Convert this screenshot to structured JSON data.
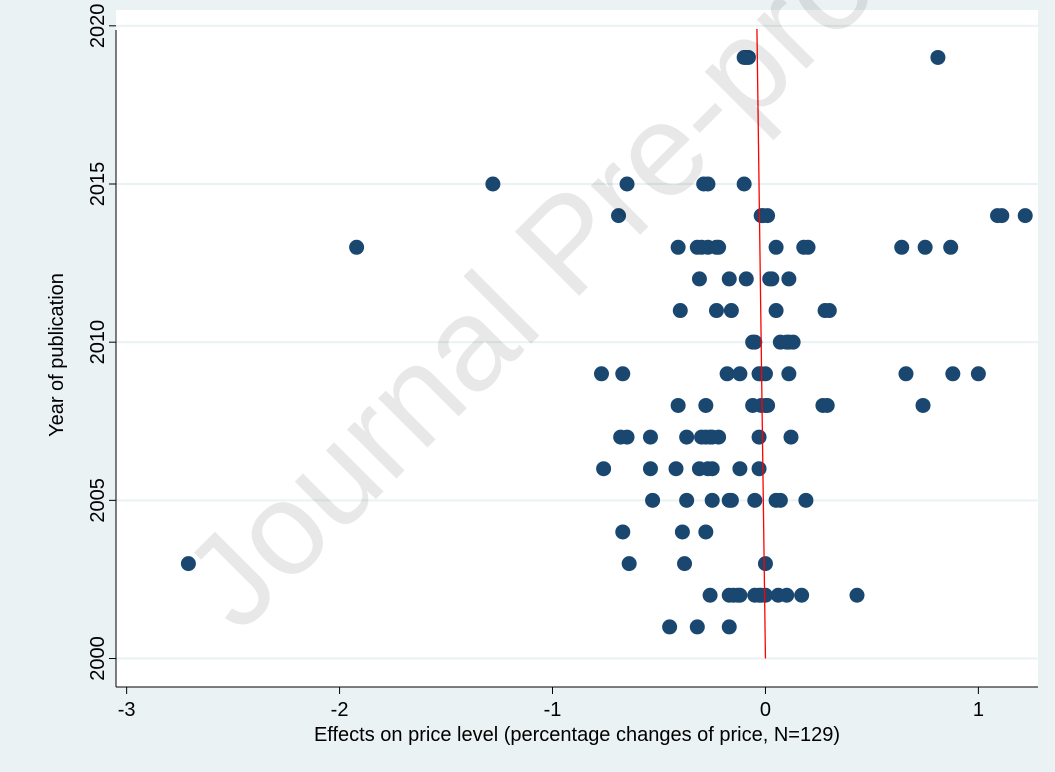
{
  "watermark": "Journal Pre-proof",
  "chart_data": {
    "type": "scatter",
    "title": "",
    "xlabel": "Effects on price level (percentage changes of price, N=129)",
    "ylabel": "Year of publication",
    "xlim": [
      -3.05,
      1.28
    ],
    "ylim": [
      1999.1,
      2020.5
    ],
    "xticks": [
      -3,
      -2,
      -1,
      0,
      1
    ],
    "yticks": [
      2000,
      2005,
      2010,
      2015,
      2020
    ],
    "grid": "horizontal",
    "colors": {
      "marker": "#1a476f",
      "line": "#ff0000",
      "plot_bg": "#ffffff",
      "outer_bg": "#eaf2f3",
      "grid": "#eaf2f3"
    },
    "trend_line": {
      "x": [
        -0.04,
        0.0
      ],
      "y": [
        2019.9,
        2000.0
      ]
    },
    "points": [
      {
        "x": -0.1,
        "y": 2019
      },
      {
        "x": -0.09,
        "y": 2019
      },
      {
        "x": -0.08,
        "y": 2019
      },
      {
        "x": 0.81,
        "y": 2019
      },
      {
        "x": -1.28,
        "y": 2015
      },
      {
        "x": -0.65,
        "y": 2015
      },
      {
        "x": -0.29,
        "y": 2015
      },
      {
        "x": -0.27,
        "y": 2015
      },
      {
        "x": -0.1,
        "y": 2015
      },
      {
        "x": -0.69,
        "y": 2014
      },
      {
        "x": -0.02,
        "y": 2014
      },
      {
        "x": -0.01,
        "y": 2014
      },
      {
        "x": 0.01,
        "y": 2014
      },
      {
        "x": 1.09,
        "y": 2014
      },
      {
        "x": 1.11,
        "y": 2014
      },
      {
        "x": 1.22,
        "y": 2014
      },
      {
        "x": -1.92,
        "y": 2013
      },
      {
        "x": -0.41,
        "y": 2013
      },
      {
        "x": -0.32,
        "y": 2013
      },
      {
        "x": -0.3,
        "y": 2013
      },
      {
        "x": -0.27,
        "y": 2013
      },
      {
        "x": -0.23,
        "y": 2013
      },
      {
        "x": -0.22,
        "y": 2013
      },
      {
        "x": 0.05,
        "y": 2013
      },
      {
        "x": 0.18,
        "y": 2013
      },
      {
        "x": 0.2,
        "y": 2013
      },
      {
        "x": 0.64,
        "y": 2013
      },
      {
        "x": 0.75,
        "y": 2013
      },
      {
        "x": 0.87,
        "y": 2013
      },
      {
        "x": -0.31,
        "y": 2012
      },
      {
        "x": -0.17,
        "y": 2012
      },
      {
        "x": -0.09,
        "y": 2012
      },
      {
        "x": 0.02,
        "y": 2012
      },
      {
        "x": 0.03,
        "y": 2012
      },
      {
        "x": 0.11,
        "y": 2012
      },
      {
        "x": -0.4,
        "y": 2011
      },
      {
        "x": -0.23,
        "y": 2011
      },
      {
        "x": -0.16,
        "y": 2011
      },
      {
        "x": 0.05,
        "y": 2011
      },
      {
        "x": 0.28,
        "y": 2011
      },
      {
        "x": 0.3,
        "y": 2011
      },
      {
        "x": -0.06,
        "y": 2010
      },
      {
        "x": -0.05,
        "y": 2010
      },
      {
        "x": 0.07,
        "y": 2010
      },
      {
        "x": 0.1,
        "y": 2010
      },
      {
        "x": 0.11,
        "y": 2010
      },
      {
        "x": 0.13,
        "y": 2010
      },
      {
        "x": -0.77,
        "y": 2009
      },
      {
        "x": -0.67,
        "y": 2009
      },
      {
        "x": -0.18,
        "y": 2009
      },
      {
        "x": -0.12,
        "y": 2009
      },
      {
        "x": -0.03,
        "y": 2009
      },
      {
        "x": -0.02,
        "y": 2009
      },
      {
        "x": 0.0,
        "y": 2009
      },
      {
        "x": 0.11,
        "y": 2009
      },
      {
        "x": 0.66,
        "y": 2009
      },
      {
        "x": 0.88,
        "y": 2009
      },
      {
        "x": 1.0,
        "y": 2009
      },
      {
        "x": -0.41,
        "y": 2008
      },
      {
        "x": -0.28,
        "y": 2008
      },
      {
        "x": -0.06,
        "y": 2008
      },
      {
        "x": -0.02,
        "y": 2008
      },
      {
        "x": 0.0,
        "y": 2008
      },
      {
        "x": 0.01,
        "y": 2008
      },
      {
        "x": 0.27,
        "y": 2008
      },
      {
        "x": 0.29,
        "y": 2008
      },
      {
        "x": 0.74,
        "y": 2008
      },
      {
        "x": -0.68,
        "y": 2007
      },
      {
        "x": -0.65,
        "y": 2007
      },
      {
        "x": -0.54,
        "y": 2007
      },
      {
        "x": -0.37,
        "y": 2007
      },
      {
        "x": -0.3,
        "y": 2007
      },
      {
        "x": -0.28,
        "y": 2007
      },
      {
        "x": -0.26,
        "y": 2007
      },
      {
        "x": -0.25,
        "y": 2007
      },
      {
        "x": -0.22,
        "y": 2007
      },
      {
        "x": -0.03,
        "y": 2007
      },
      {
        "x": 0.12,
        "y": 2007
      },
      {
        "x": -0.76,
        "y": 2006
      },
      {
        "x": -0.54,
        "y": 2006
      },
      {
        "x": -0.42,
        "y": 2006
      },
      {
        "x": -0.31,
        "y": 2006
      },
      {
        "x": -0.27,
        "y": 2006
      },
      {
        "x": -0.25,
        "y": 2006
      },
      {
        "x": -0.12,
        "y": 2006
      },
      {
        "x": -0.03,
        "y": 2006
      },
      {
        "x": -0.53,
        "y": 2005
      },
      {
        "x": -0.37,
        "y": 2005
      },
      {
        "x": -0.25,
        "y": 2005
      },
      {
        "x": -0.17,
        "y": 2005
      },
      {
        "x": -0.16,
        "y": 2005
      },
      {
        "x": -0.05,
        "y": 2005
      },
      {
        "x": 0.05,
        "y": 2005
      },
      {
        "x": 0.07,
        "y": 2005
      },
      {
        "x": 0.19,
        "y": 2005
      },
      {
        "x": -0.67,
        "y": 2004
      },
      {
        "x": -0.39,
        "y": 2004
      },
      {
        "x": -0.28,
        "y": 2004
      },
      {
        "x": -2.71,
        "y": 2003
      },
      {
        "x": -0.64,
        "y": 2003
      },
      {
        "x": -0.38,
        "y": 2003
      },
      {
        "x": 0.0,
        "y": 2003
      },
      {
        "x": -0.26,
        "y": 2002
      },
      {
        "x": -0.17,
        "y": 2002
      },
      {
        "x": -0.15,
        "y": 2002
      },
      {
        "x": -0.13,
        "y": 2002
      },
      {
        "x": -0.12,
        "y": 2002
      },
      {
        "x": -0.05,
        "y": 2002
      },
      {
        "x": -0.03,
        "y": 2002
      },
      {
        "x": -0.02,
        "y": 2002
      },
      {
        "x": 0.0,
        "y": 2002
      },
      {
        "x": 0.06,
        "y": 2002
      },
      {
        "x": 0.1,
        "y": 2002
      },
      {
        "x": 0.17,
        "y": 2002
      },
      {
        "x": 0.43,
        "y": 2002
      },
      {
        "x": -0.45,
        "y": 2001
      },
      {
        "x": -0.32,
        "y": 2001
      },
      {
        "x": -0.17,
        "y": 2001
      }
    ]
  }
}
